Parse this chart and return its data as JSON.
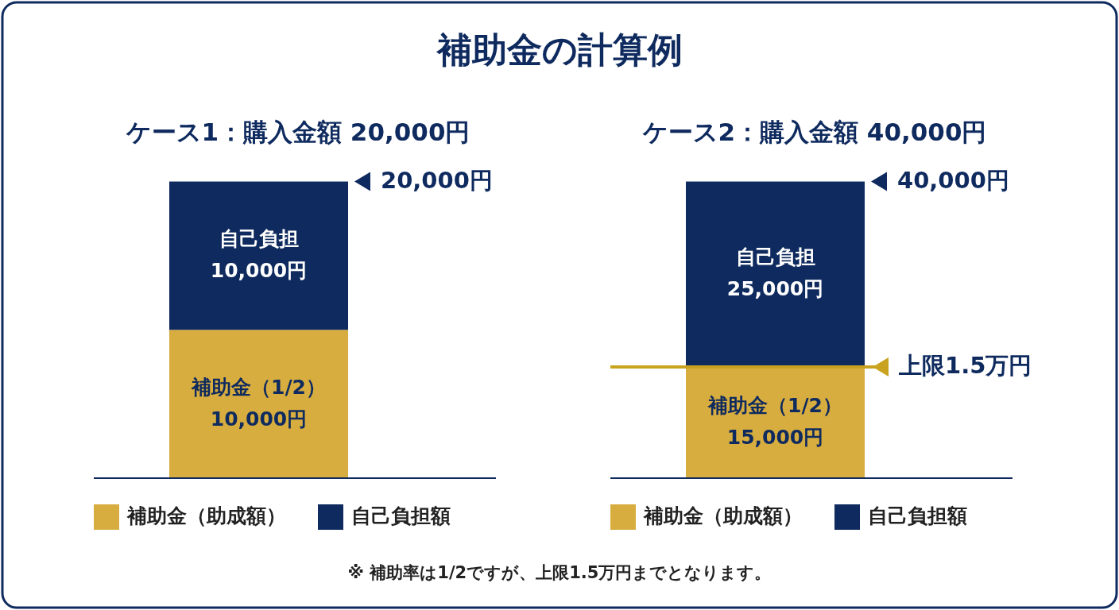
{
  "chart_data": [
    {
      "type": "bar",
      "stacked": true,
      "title": "ケース1：購入金額 20,000円",
      "categories": [
        null
      ],
      "tick_labels": false,
      "legend": "bottom",
      "series": [
        {
          "name": "補助金（助成額）",
          "color": "#d8ad3f",
          "values": [
            10000
          ],
          "value_labels": [
            "補助金（1/2）\n10,000円"
          ]
        },
        {
          "name": "自己負担額",
          "color": "#0e2a5e",
          "values": [
            10000
          ],
          "value_labels": [
            "自己負担\n10,000円"
          ]
        }
      ],
      "totals": [
        "20,000円"
      ]
    },
    {
      "type": "bar",
      "stacked": true,
      "title": "ケース2：購入金額 40,000円",
      "categories": [
        null
      ],
      "tick_labels": false,
      "legend": "bottom",
      "series": [
        {
          "name": "補助金（助成額）",
          "color": "#d8ad3f",
          "values": [
            15000
          ],
          "value_labels": [
            "補助金（1/2）\n15,000円"
          ]
        },
        {
          "name": "自己負担額",
          "color": "#0e2a5e",
          "values": [
            25000
          ],
          "value_labels": [
            "自己負担\n25,000円"
          ]
        }
      ],
      "totals": [
        "40,000円"
      ],
      "ref_lines": [
        {
          "axis": "y",
          "value": 15000,
          "label": "上限1.5万円",
          "color": "#c9a21f"
        }
      ]
    },
    {
      "type": "other",
      "title": "補助金の計算例",
      "annotations": [
        "※ 補助率は1/2ですが、上限1.5万円までとなります。"
      ]
    }
  ]
}
